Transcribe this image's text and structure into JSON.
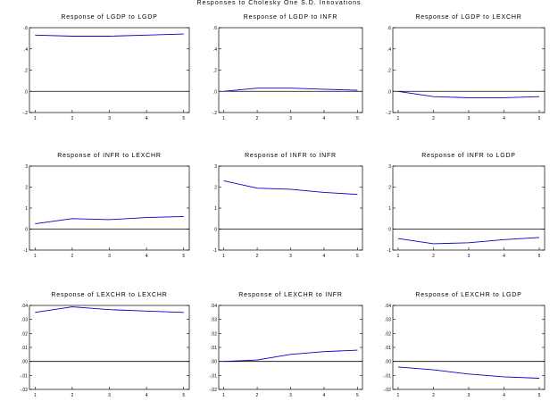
{
  "figure": {
    "title": "Responses to Cholesky One S.D. Innovations"
  },
  "chart_data": [
    {
      "type": "line",
      "title": "Response of LGDP to LGDP",
      "x": [
        1,
        2,
        3,
        4,
        5
      ],
      "series": [
        {
          "values": [
            0.53,
            0.52,
            0.52,
            0.53,
            0.54
          ],
          "color": "#0000cc"
        }
      ],
      "ylim": [
        -0.2,
        0.6
      ],
      "yticks": [
        -0.2,
        0.0,
        0.2,
        0.4,
        0.6
      ],
      "ytick_labels": [
        "-.2",
        ".0",
        ".2",
        ".4",
        ".6"
      ],
      "zero_line": true,
      "grid": false
    },
    {
      "type": "line",
      "title": "Response of LGDP to INFR",
      "x": [
        1,
        2,
        3,
        4,
        5
      ],
      "series": [
        {
          "values": [
            0.0,
            0.03,
            0.03,
            0.02,
            0.01
          ],
          "color": "#0000cc"
        }
      ],
      "ylim": [
        -0.2,
        0.6
      ],
      "yticks": [
        -0.2,
        0.0,
        0.2,
        0.4,
        0.6
      ],
      "ytick_labels": [
        "-.2",
        ".0",
        ".2",
        ".4",
        ".6"
      ],
      "zero_line": true,
      "grid": false
    },
    {
      "type": "line",
      "title": "Response of LGDP to LEXCHR",
      "x": [
        1,
        2,
        3,
        4,
        5
      ],
      "series": [
        {
          "values": [
            0.0,
            -0.05,
            -0.06,
            -0.06,
            -0.05
          ],
          "color": "#0000cc"
        }
      ],
      "ylim": [
        -0.2,
        0.6
      ],
      "yticks": [
        -0.2,
        0.0,
        0.2,
        0.4,
        0.6
      ],
      "ytick_labels": [
        "-.2",
        ".0",
        ".2",
        ".4",
        ".6"
      ],
      "zero_line": true,
      "grid": false
    },
    {
      "type": "line",
      "title": "Response of INFR to LEXCHR",
      "x": [
        1,
        2,
        3,
        4,
        5
      ],
      "series": [
        {
          "values": [
            0.25,
            0.5,
            0.45,
            0.55,
            0.6
          ],
          "color": "#0000cc"
        }
      ],
      "ylim": [
        -1,
        3
      ],
      "yticks": [
        -1,
        0,
        1,
        2,
        3
      ],
      "ytick_labels": [
        "-1",
        "0",
        "1",
        "2",
        "3"
      ],
      "zero_line": true,
      "grid": false
    },
    {
      "type": "line",
      "title": "Response of INFR to INFR",
      "x": [
        1,
        2,
        3,
        4,
        5
      ],
      "series": [
        {
          "values": [
            2.3,
            1.95,
            1.9,
            1.75,
            1.65
          ],
          "color": "#0000cc"
        }
      ],
      "ylim": [
        -1,
        3
      ],
      "yticks": [
        -1,
        0,
        1,
        2,
        3
      ],
      "ytick_labels": [
        "-1",
        "0",
        "1",
        "2",
        "3"
      ],
      "zero_line": true,
      "grid": false
    },
    {
      "type": "line",
      "title": "Response of INFR to LGDP",
      "x": [
        1,
        2,
        3,
        4,
        5
      ],
      "series": [
        {
          "values": [
            -0.45,
            -0.7,
            -0.65,
            -0.5,
            -0.4
          ],
          "color": "#0000cc"
        }
      ],
      "ylim": [
        -1,
        3
      ],
      "yticks": [
        -1,
        0,
        1,
        2,
        3
      ],
      "ytick_labels": [
        "-1",
        "0",
        "1",
        "2",
        "3"
      ],
      "zero_line": true,
      "grid": false
    },
    {
      "type": "line",
      "title": "Response of LEXCHR to LEXCHR",
      "x": [
        1,
        2,
        3,
        4,
        5
      ],
      "series": [
        {
          "values": [
            0.035,
            0.039,
            0.037,
            0.036,
            0.035
          ],
          "color": "#0000cc"
        }
      ],
      "ylim": [
        -0.02,
        0.04
      ],
      "yticks": [
        -0.02,
        -0.01,
        0.0,
        0.01,
        0.02,
        0.03,
        0.04
      ],
      "ytick_labels": [
        "-.02",
        "-.01",
        ".00",
        ".01",
        ".02",
        ".03",
        ".04"
      ],
      "zero_line": true,
      "grid": false
    },
    {
      "type": "line",
      "title": "Response of LEXCHR to INFR",
      "x": [
        1,
        2,
        3,
        4,
        5
      ],
      "series": [
        {
          "values": [
            0.0,
            0.001,
            0.005,
            0.007,
            0.008
          ],
          "color": "#0000cc"
        }
      ],
      "ylim": [
        -0.02,
        0.04
      ],
      "yticks": [
        -0.02,
        -0.01,
        0.0,
        0.01,
        0.02,
        0.03,
        0.04
      ],
      "ytick_labels": [
        "-.02",
        "-.01",
        ".00",
        ".01",
        ".02",
        ".03",
        ".04"
      ],
      "zero_line": true,
      "grid": false
    },
    {
      "type": "line",
      "title": "Response of LEXCHR to LGDP",
      "x": [
        1,
        2,
        3,
        4,
        5
      ],
      "series": [
        {
          "values": [
            -0.004,
            -0.006,
            -0.009,
            -0.011,
            -0.012
          ],
          "color": "#0000cc"
        }
      ],
      "ylim": [
        -0.02,
        0.04
      ],
      "yticks": [
        -0.02,
        -0.01,
        0.0,
        0.01,
        0.02,
        0.03,
        0.04
      ],
      "ytick_labels": [
        "-.02",
        "-.01",
        ".00",
        ".01",
        ".02",
        ".03",
        ".04"
      ],
      "zero_line": true,
      "grid": false
    }
  ]
}
